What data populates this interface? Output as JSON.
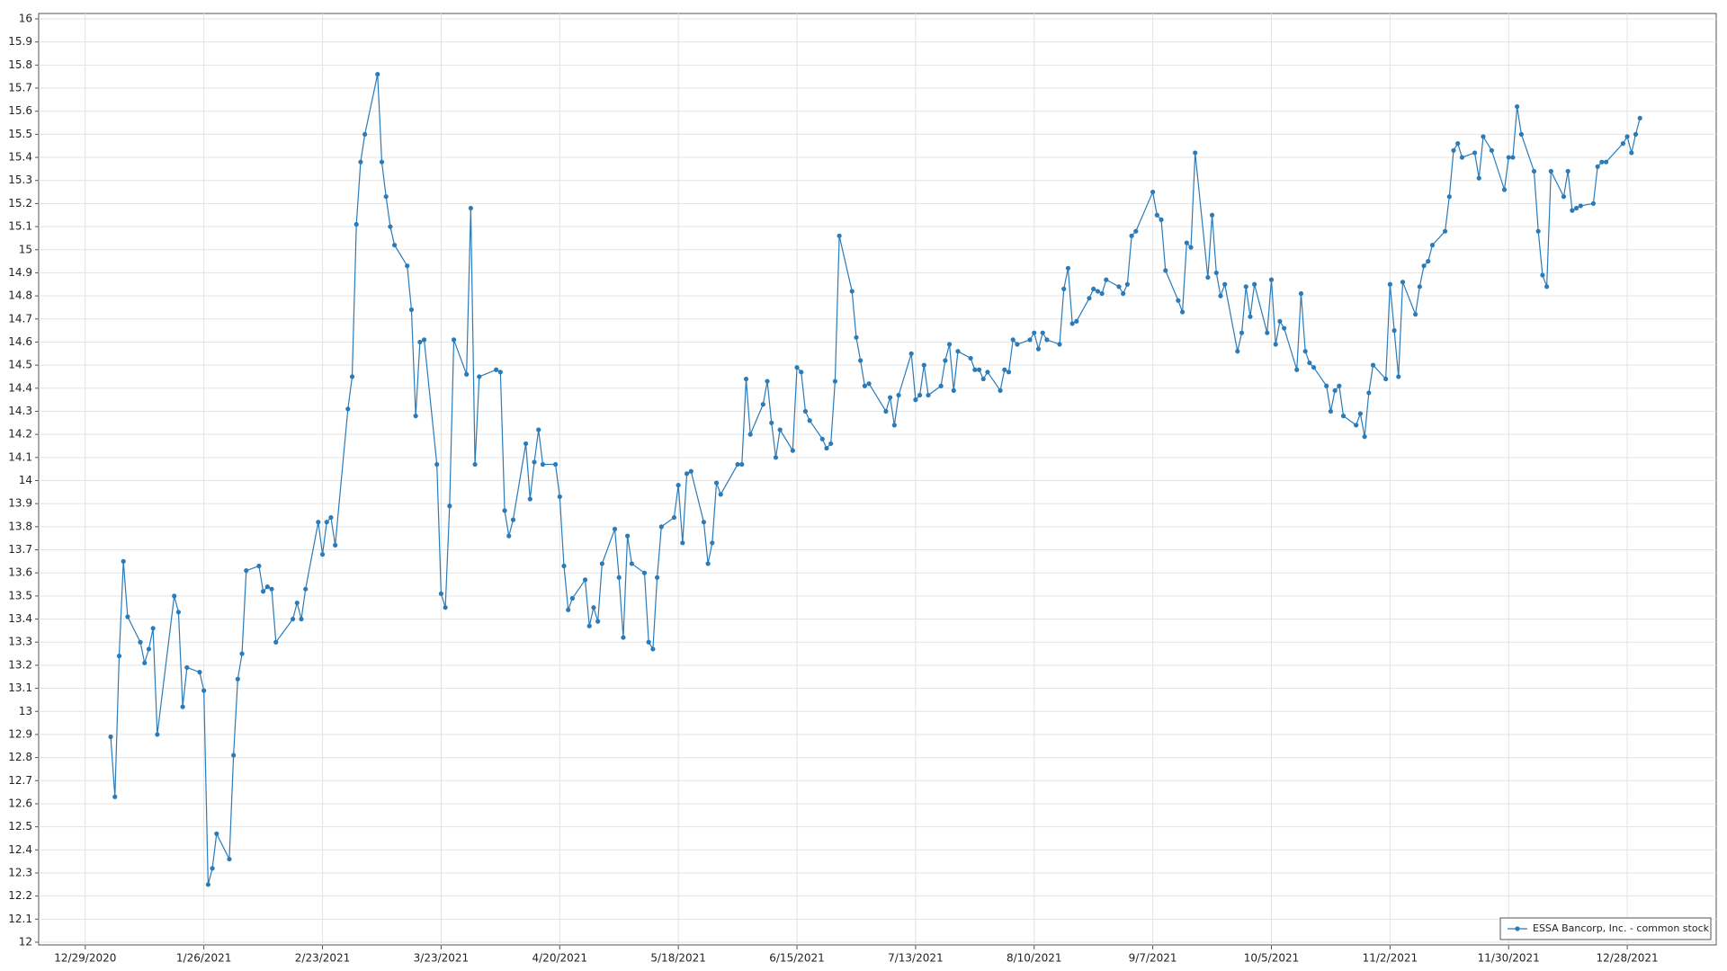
{
  "chart_data": {
    "type": "line",
    "x": [
      "1/4/2021",
      "1/5/2021",
      "1/6/2021",
      "1/7/2021",
      "1/8/2021",
      "1/11/2021",
      "1/12/2021",
      "1/13/2021",
      "1/14/2021",
      "1/15/2021",
      "1/19/2021",
      "1/20/2021",
      "1/21/2021",
      "1/22/2021",
      "1/25/2021",
      "1/26/2021",
      "1/27/2021",
      "1/28/2021",
      "1/29/2021",
      "2/1/2021",
      "2/2/2021",
      "2/3/2021",
      "2/4/2021",
      "2/5/2021",
      "2/8/2021",
      "2/9/2021",
      "2/10/2021",
      "2/11/2021",
      "2/12/2021",
      "2/16/2021",
      "2/17/2021",
      "2/18/2021",
      "2/19/2021",
      "2/22/2021",
      "2/23/2021",
      "2/24/2021",
      "2/25/2021",
      "2/26/2021",
      "3/1/2021",
      "3/2/2021",
      "3/3/2021",
      "3/4/2021",
      "3/5/2021",
      "3/8/2021",
      "3/9/2021",
      "3/10/2021",
      "3/11/2021",
      "3/12/2021",
      "3/15/2021",
      "3/16/2021",
      "3/17/2021",
      "3/18/2021",
      "3/19/2021",
      "3/22/2021",
      "3/23/2021",
      "3/24/2021",
      "3/25/2021",
      "3/26/2021",
      "3/29/2021",
      "3/30/2021",
      "3/31/2021",
      "4/1/2021",
      "4/5/2021",
      "4/6/2021",
      "4/7/2021",
      "4/8/2021",
      "4/9/2021",
      "4/12/2021",
      "4/13/2021",
      "4/14/2021",
      "4/15/2021",
      "4/16/2021",
      "4/19/2021",
      "4/20/2021",
      "4/21/2021",
      "4/22/2021",
      "4/23/2021",
      "4/26/2021",
      "4/27/2021",
      "4/28/2021",
      "4/29/2021",
      "4/30/2021",
      "5/3/2021",
      "5/4/2021",
      "5/5/2021",
      "5/6/2021",
      "5/7/2021",
      "5/10/2021",
      "5/11/2021",
      "5/12/2021",
      "5/13/2021",
      "5/14/2021",
      "5/17/2021",
      "5/18/2021",
      "5/19/2021",
      "5/20/2021",
      "5/21/2021",
      "5/24/2021",
      "5/25/2021",
      "5/26/2021",
      "5/27/2021",
      "5/28/2021",
      "6/1/2021",
      "6/2/2021",
      "6/3/2021",
      "6/4/2021",
      "6/7/2021",
      "6/8/2021",
      "6/9/2021",
      "6/10/2021",
      "6/11/2021",
      "6/14/2021",
      "6/15/2021",
      "6/16/2021",
      "6/17/2021",
      "6/18/2021",
      "6/21/2021",
      "6/22/2021",
      "6/23/2021",
      "6/24/2021",
      "6/25/2021",
      "6/28/2021",
      "6/29/2021",
      "6/30/2021",
      "7/1/2021",
      "7/2/2021",
      "7/6/2021",
      "7/7/2021",
      "7/8/2021",
      "7/9/2021",
      "7/12/2021",
      "7/13/2021",
      "7/14/2021",
      "7/15/2021",
      "7/16/2021",
      "7/19/2021",
      "7/20/2021",
      "7/21/2021",
      "7/22/2021",
      "7/23/2021",
      "7/26/2021",
      "7/27/2021",
      "7/28/2021",
      "7/29/2021",
      "7/30/2021",
      "8/2/2021",
      "8/3/2021",
      "8/4/2021",
      "8/5/2021",
      "8/6/2021",
      "8/9/2021",
      "8/10/2021",
      "8/11/2021",
      "8/12/2021",
      "8/13/2021",
      "8/16/2021",
      "8/17/2021",
      "8/18/2021",
      "8/19/2021",
      "8/20/2021",
      "8/23/2021",
      "8/24/2021",
      "8/25/2021",
      "8/26/2021",
      "8/27/2021",
      "8/30/2021",
      "8/31/2021",
      "9/1/2021",
      "9/2/2021",
      "9/3/2021",
      "9/7/2021",
      "9/8/2021",
      "9/9/2021",
      "9/10/2021",
      "9/13/2021",
      "9/14/2021",
      "9/15/2021",
      "9/16/2021",
      "9/17/2021",
      "9/20/2021",
      "9/21/2021",
      "9/22/2021",
      "9/23/2021",
      "9/24/2021",
      "9/27/2021",
      "9/28/2021",
      "9/29/2021",
      "9/30/2021",
      "10/1/2021",
      "10/4/2021",
      "10/5/2021",
      "10/6/2021",
      "10/7/2021",
      "10/8/2021",
      "10/11/2021",
      "10/12/2021",
      "10/13/2021",
      "10/14/2021",
      "10/15/2021",
      "10/18/2021",
      "10/19/2021",
      "10/20/2021",
      "10/21/2021",
      "10/22/2021",
      "10/25/2021",
      "10/26/2021",
      "10/27/2021",
      "10/28/2021",
      "10/29/2021",
      "11/1/2021",
      "11/2/2021",
      "11/3/2021",
      "11/4/2021",
      "11/5/2021",
      "11/8/2021",
      "11/9/2021",
      "11/10/2021",
      "11/11/2021",
      "11/12/2021",
      "11/15/2021",
      "11/16/2021",
      "11/17/2021",
      "11/18/2021",
      "11/19/2021",
      "11/22/2021",
      "11/23/2021",
      "11/24/2021",
      "11/26/2021",
      "11/29/2021",
      "11/30/2021",
      "12/1/2021",
      "12/2/2021",
      "12/3/2021",
      "12/6/2021",
      "12/7/2021",
      "12/8/2021",
      "12/9/2021",
      "12/10/2021",
      "12/13/2021",
      "12/14/2021",
      "12/15/2021",
      "12/16/2021",
      "12/17/2021",
      "12/20/2021",
      "12/21/2021",
      "12/22/2021",
      "12/23/2021",
      "12/27/2021",
      "12/28/2021",
      "12/29/2021",
      "12/30/2021",
      "12/31/2021"
    ],
    "series": [
      {
        "name": "ESSA Bancorp, Inc. - common stock",
        "color": "#2b7bb9",
        "values": [
          12.89,
          12.63,
          13.24,
          13.65,
          13.41,
          13.3,
          13.21,
          13.27,
          13.36,
          12.9,
          13.5,
          13.43,
          13.02,
          13.19,
          13.17,
          13.09,
          12.25,
          12.32,
          12.47,
          12.36,
          12.81,
          13.14,
          13.25,
          13.61,
          13.63,
          13.52,
          13.54,
          13.53,
          13.3,
          13.4,
          13.47,
          13.4,
          13.53,
          13.82,
          13.68,
          13.82,
          13.84,
          13.72,
          14.31,
          14.45,
          15.11,
          15.38,
          15.5,
          15.76,
          15.38,
          15.23,
          15.1,
          15.02,
          14.93,
          14.74,
          14.28,
          14.6,
          14.61,
          14.07,
          13.51,
          13.45,
          13.89,
          14.61,
          14.46,
          15.18,
          14.07,
          14.45,
          14.48,
          14.47,
          13.87,
          13.76,
          13.83,
          14.16,
          13.92,
          14.08,
          14.22,
          14.07,
          14.07,
          13.93,
          13.63,
          13.44,
          13.49,
          13.57,
          13.37,
          13.45,
          13.39,
          13.64,
          13.79,
          13.58,
          13.32,
          13.76,
          13.64,
          13.6,
          13.3,
          13.27,
          13.58,
          13.8,
          13.84,
          13.98,
          13.73,
          14.03,
          14.04,
          13.82,
          13.64,
          13.73,
          13.99,
          13.94,
          14.07,
          14.07,
          14.44,
          14.2,
          14.33,
          14.43,
          14.25,
          14.1,
          14.22,
          14.13,
          14.49,
          14.47,
          14.3,
          14.26,
          14.18,
          14.14,
          14.16,
          14.43,
          15.06,
          14.82,
          14.62,
          14.52,
          14.41,
          14.42,
          14.3,
          14.36,
          14.24,
          14.37,
          14.55,
          14.35,
          14.37,
          14.5,
          14.37,
          14.41,
          14.52,
          14.59,
          14.39,
          14.56,
          14.53,
          14.48,
          14.48,
          14.44,
          14.47,
          14.39,
          14.48,
          14.47,
          14.61,
          14.59,
          14.61,
          14.64,
          14.57,
          14.64,
          14.61,
          14.59,
          14.83,
          14.92,
          14.68,
          14.69,
          14.79,
          14.83,
          14.82,
          14.81,
          14.87,
          14.84,
          14.81,
          14.85,
          15.06,
          15.08,
          15.25,
          15.15,
          15.13,
          14.91,
          14.78,
          14.73,
          15.03,
          15.01,
          15.42,
          14.88,
          15.15,
          14.9,
          14.8,
          14.85,
          14.56,
          14.64,
          14.84,
          14.71,
          14.85,
          14.64,
          14.87,
          14.59,
          14.69,
          14.66,
          14.48,
          14.81,
          14.56,
          14.51,
          14.49,
          14.41,
          14.3,
          14.39,
          14.41,
          14.28,
          14.24,
          14.29,
          14.19,
          14.38,
          14.5,
          14.44,
          14.85,
          14.65,
          14.45,
          14.86,
          14.72,
          14.84,
          14.93,
          14.95,
          15.02,
          15.08,
          15.23,
          15.43,
          15.46,
          15.4,
          15.42,
          15.31,
          15.49,
          15.43,
          15.26,
          15.4,
          15.4,
          15.62,
          15.5,
          15.34,
          15.08,
          14.89,
          14.84,
          15.34,
          15.23,
          15.34,
          15.17,
          15.18,
          15.19,
          15.2,
          15.36,
          15.38,
          15.38,
          15.46,
          15.49,
          15.42,
          15.5,
          15.57
        ]
      }
    ],
    "xlim": [
      "12/18/2020",
      "1/18/2022"
    ],
    "xticks": [
      "12/29/2020",
      "1/26/2021",
      "2/23/2021",
      "3/23/2021",
      "4/20/2021",
      "5/18/2021",
      "6/15/2021",
      "7/13/2021",
      "8/10/2021",
      "9/7/2021",
      "10/5/2021",
      "11/2/2021",
      "11/30/2021",
      "12/28/2021"
    ],
    "ylim": [
      12,
      16
    ],
    "yticks": [
      12,
      12.1,
      12.2,
      12.3,
      12.4,
      12.5,
      12.6,
      12.7,
      12.8,
      12.9,
      13,
      13.1,
      13.2,
      13.3,
      13.4,
      13.5,
      13.6,
      13.7,
      13.8,
      13.9,
      14,
      14.1,
      14.2,
      14.3,
      14.4,
      14.5,
      14.6,
      14.7,
      14.8,
      14.9,
      15,
      15.1,
      15.2,
      15.3,
      15.4,
      15.5,
      15.6,
      15.7,
      15.8,
      15.9,
      16
    ],
    "grid": true,
    "legend": "lower right"
  }
}
